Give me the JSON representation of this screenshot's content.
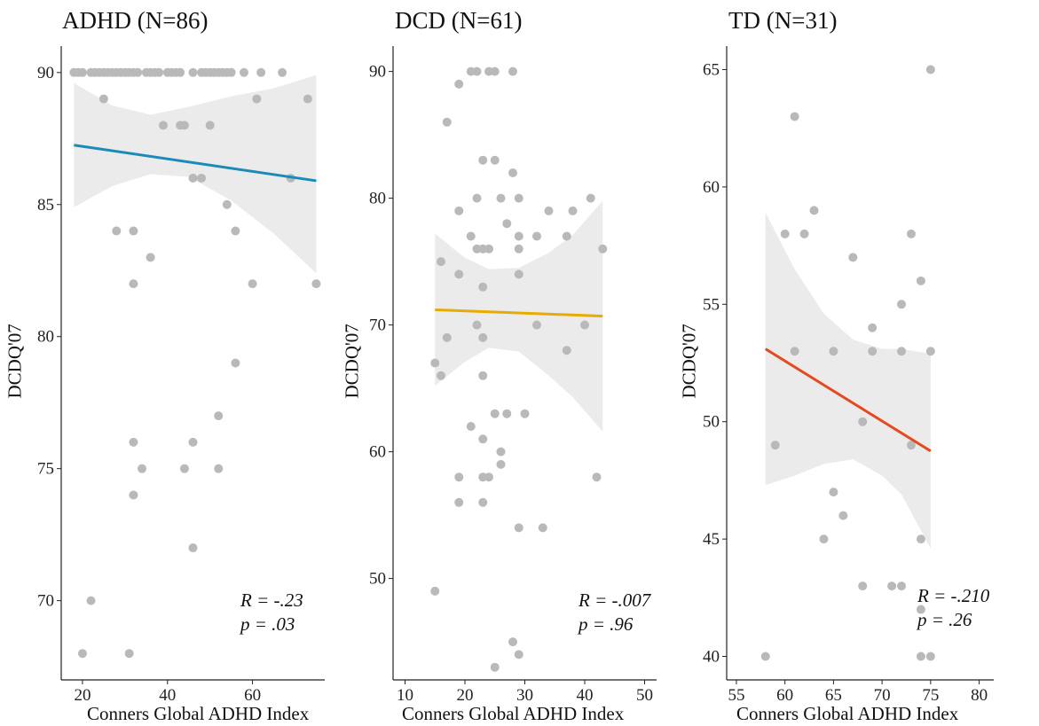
{
  "chart_data": [
    {
      "type": "scatter",
      "title": "ADHD (N=86)",
      "xlabel": "Conners Global ADHD Index",
      "ylabel": "DCDQ'07",
      "xlim": [
        15,
        77
      ],
      "ylim": [
        67,
        91
      ],
      "xticks": [
        20,
        40,
        60
      ],
      "yticks": [
        70,
        75,
        80,
        85,
        90
      ],
      "line_color": "#1a8bb9",
      "regression": {
        "x": [
          18,
          75
        ],
        "y": [
          87.25,
          85.9
        ]
      },
      "ci_band": {
        "x": [
          18,
          27,
          36,
          45,
          55,
          65,
          75
        ],
        "upper": [
          89.6,
          88.75,
          88.4,
          88.7,
          89.1,
          89.4,
          89.9
        ],
        "lower": [
          84.9,
          85.7,
          86.15,
          86.05,
          85.15,
          83.9,
          82.4
        ]
      },
      "annotation": {
        "r": "R = -.23",
        "p": "p = .03"
      },
      "points": [
        [
          18,
          90
        ],
        [
          19,
          90
        ],
        [
          20,
          90
        ],
        [
          22,
          90
        ],
        [
          23,
          90
        ],
        [
          24,
          90
        ],
        [
          25,
          90
        ],
        [
          26,
          90
        ],
        [
          27,
          90
        ],
        [
          28,
          90
        ],
        [
          29,
          90
        ],
        [
          30,
          90
        ],
        [
          31,
          90
        ],
        [
          32,
          90
        ],
        [
          33,
          90
        ],
        [
          35,
          90
        ],
        [
          36,
          90
        ],
        [
          37,
          90
        ],
        [
          38,
          90
        ],
        [
          40,
          90
        ],
        [
          41,
          90
        ],
        [
          42,
          90
        ],
        [
          43,
          90
        ],
        [
          46,
          90
        ],
        [
          48,
          90
        ],
        [
          49,
          90
        ],
        [
          50,
          90
        ],
        [
          51,
          90
        ],
        [
          52,
          90
        ],
        [
          53,
          90
        ],
        [
          54,
          90
        ],
        [
          55,
          90
        ],
        [
          58,
          90
        ],
        [
          62,
          90
        ],
        [
          67,
          90
        ],
        [
          25,
          89
        ],
        [
          61,
          89
        ],
        [
          73,
          89
        ],
        [
          39,
          88
        ],
        [
          43,
          88
        ],
        [
          44,
          88
        ],
        [
          50,
          88
        ],
        [
          46,
          86
        ],
        [
          48,
          86
        ],
        [
          69,
          86
        ],
        [
          54,
          85
        ],
        [
          28,
          84
        ],
        [
          32,
          84
        ],
        [
          56,
          84
        ],
        [
          36,
          83
        ],
        [
          32,
          82
        ],
        [
          60,
          82
        ],
        [
          75,
          82
        ],
        [
          56,
          79
        ],
        [
          52,
          77
        ],
        [
          32,
          76
        ],
        [
          46,
          76
        ],
        [
          34,
          75
        ],
        [
          44,
          75
        ],
        [
          52,
          75
        ],
        [
          32,
          74
        ],
        [
          46,
          72
        ],
        [
          22,
          70
        ],
        [
          20,
          68
        ],
        [
          31,
          68
        ]
      ]
    },
    {
      "type": "scatter",
      "title": "DCD (N=61)",
      "xlabel": "Conners Global ADHD Index",
      "ylabel": "DCDQ'07",
      "xlim": [
        8,
        52
      ],
      "ylim": [
        42,
        92
      ],
      "xticks": [
        10,
        20,
        30,
        40,
        50
      ],
      "yticks": [
        50,
        60,
        70,
        80,
        90
      ],
      "line_color": "#e6ac00",
      "regression": {
        "x": [
          15,
          43
        ],
        "y": [
          71.2,
          70.7
        ]
      },
      "ci_band": {
        "x": [
          15,
          20,
          24,
          29,
          34,
          38,
          43
        ],
        "upper": [
          77.2,
          75.3,
          74.4,
          74.5,
          75.7,
          77.1,
          79.8
        ],
        "lower": [
          65.2,
          67.1,
          68.2,
          67.9,
          66.0,
          64.3,
          61.6
        ]
      },
      "annotation": {
        "r": "R = -.007",
        "p": "p = .96"
      },
      "points": [
        [
          21,
          90
        ],
        [
          22,
          90
        ],
        [
          24,
          90
        ],
        [
          25,
          90
        ],
        [
          28,
          90
        ],
        [
          19,
          89
        ],
        [
          17,
          86
        ],
        [
          23,
          83
        ],
        [
          25,
          83
        ],
        [
          28,
          82
        ],
        [
          22,
          80
        ],
        [
          26,
          80
        ],
        [
          29,
          80
        ],
        [
          41,
          80
        ],
        [
          19,
          79
        ],
        [
          34,
          79
        ],
        [
          38,
          79
        ],
        [
          27,
          78
        ],
        [
          21,
          77
        ],
        [
          29,
          77
        ],
        [
          32,
          77
        ],
        [
          37,
          77
        ],
        [
          16,
          75
        ],
        [
          22,
          76
        ],
        [
          23,
          76
        ],
        [
          24,
          76
        ],
        [
          29,
          76
        ],
        [
          43,
          76
        ],
        [
          19,
          74
        ],
        [
          29,
          74
        ],
        [
          23,
          73
        ],
        [
          22,
          70
        ],
        [
          32,
          70
        ],
        [
          40,
          70
        ],
        [
          17,
          69
        ],
        [
          23,
          69
        ],
        [
          37,
          68
        ],
        [
          15,
          67
        ],
        [
          16,
          66
        ],
        [
          23,
          66
        ],
        [
          25,
          63
        ],
        [
          27,
          63
        ],
        [
          30,
          63
        ],
        [
          21,
          62
        ],
        [
          23,
          61
        ],
        [
          26,
          60
        ],
        [
          26,
          59
        ],
        [
          19,
          58
        ],
        [
          23,
          58
        ],
        [
          24,
          58
        ],
        [
          42,
          58
        ],
        [
          19,
          56
        ],
        [
          23,
          56
        ],
        [
          29,
          54
        ],
        [
          33,
          54
        ],
        [
          15,
          49
        ],
        [
          28,
          45
        ],
        [
          29,
          44
        ],
        [
          25,
          43
        ]
      ]
    },
    {
      "type": "scatter",
      "title": "TD (N=31)",
      "xlabel": "Conners Global ADHD Index",
      "ylabel": "DCDQ'07",
      "xlim": [
        54,
        81.5
      ],
      "ylim": [
        39,
        66
      ],
      "xticks": [
        55,
        60,
        65,
        70,
        75,
        80
      ],
      "yticks": [
        40,
        45,
        50,
        55,
        60,
        65
      ],
      "line_color": "#e8481c",
      "regression": {
        "x": [
          58,
          75
        ],
        "y": [
          53.1,
          48.75
        ]
      },
      "ci_band": {
        "x": [
          58,
          61,
          64,
          67,
          70,
          72,
          75
        ],
        "upper": [
          58.9,
          56.5,
          54.6,
          53.5,
          53.1,
          53.1,
          52.9
        ],
        "lower": [
          47.3,
          47.7,
          48.2,
          48.4,
          47.7,
          46.9,
          44.6
        ]
      },
      "annotation": {
        "r": "R = -.210",
        "p": "p = .26"
      },
      "points": [
        [
          75,
          65
        ],
        [
          61,
          63
        ],
        [
          60,
          58
        ],
        [
          62,
          58
        ],
        [
          63,
          59
        ],
        [
          73,
          58
        ],
        [
          67,
          57
        ],
        [
          74,
          56
        ],
        [
          72,
          55
        ],
        [
          69,
          54
        ],
        [
          61,
          53
        ],
        [
          65,
          53
        ],
        [
          69,
          53
        ],
        [
          72,
          53
        ],
        [
          75,
          53
        ],
        [
          68,
          50
        ],
        [
          59,
          49
        ],
        [
          73,
          49
        ],
        [
          65,
          47
        ],
        [
          66,
          46
        ],
        [
          64,
          45
        ],
        [
          74,
          45
        ],
        [
          68,
          43
        ],
        [
          71,
          43
        ],
        [
          72,
          43
        ],
        [
          74,
          42
        ],
        [
          58,
          40
        ],
        [
          74,
          40
        ],
        [
          75,
          40
        ]
      ]
    }
  ]
}
